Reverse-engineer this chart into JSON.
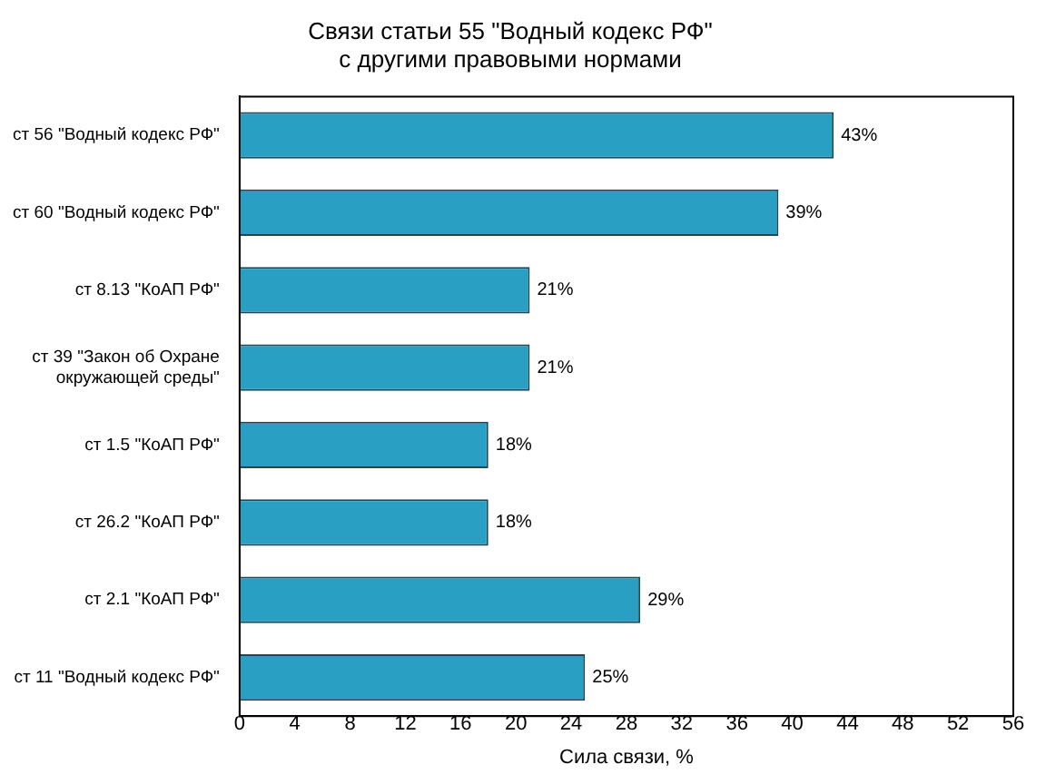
{
  "chart_data": {
    "type": "bar",
    "orientation": "horizontal",
    "title": "Связи статьи 55 \"Водный кодекс РФ\"\nс другими правовыми нормами",
    "xlabel": "Сила связи, %",
    "categories": [
      "ст 56 \"Водный кодекс РФ\"",
      "ст 60 \"Водный кодекс РФ\"",
      "ст 8.13 \"КоАП РФ\"",
      "ст 39 \"Закон об Охране\nокружающей среды\"",
      "ст 1.5 \"КоАП РФ\"",
      "ст 26.2 \"КоАП РФ\"",
      "ст 2.1 \"КоАП РФ\"",
      "ст 11 \"Водный кодекс РФ\""
    ],
    "values": [
      43,
      39,
      21,
      21,
      18,
      18,
      29,
      25
    ],
    "value_labels": [
      "43%",
      "39%",
      "21%",
      "21%",
      "18%",
      "18%",
      "29%",
      "25%"
    ],
    "color": "#2a9fc4",
    "xlim": [
      0,
      56
    ],
    "xticks": [
      0,
      4,
      8,
      12,
      16,
      20,
      24,
      28,
      32,
      36,
      40,
      44,
      48,
      52,
      56
    ],
    "grid": false,
    "legend": false
  }
}
